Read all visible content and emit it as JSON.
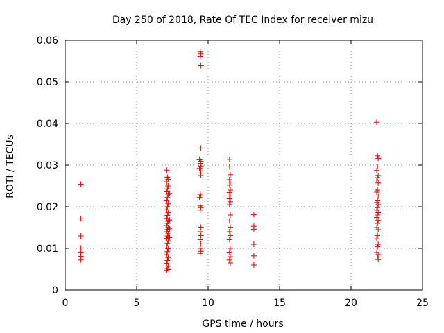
{
  "chart_data": {
    "type": "scatter",
    "title": "Day 250 of 2018, Rate Of TEC Index for receiver mizu",
    "xlabel": "GPS time / hours",
    "ylabel": "ROTI / TECUs",
    "xlim": [
      0,
      25
    ],
    "ylim": [
      0,
      0.06
    ],
    "x_ticks": [
      0,
      5,
      10,
      15,
      20,
      25
    ],
    "x_tick_labels": [
      "0",
      "5",
      "10",
      "15",
      "20",
      "25"
    ],
    "y_ticks": [
      0,
      0.01,
      0.02,
      0.03,
      0.04,
      0.05,
      0.06
    ],
    "y_tick_labels": [
      "0",
      "0.01",
      "0.02",
      "0.03",
      "0.04",
      "0.05",
      "0.06"
    ],
    "grid": true,
    "marker": "plus",
    "color": "#dd0000",
    "series": [
      {
        "points": [
          [
            1.1,
            0.0254
          ],
          [
            1.1,
            0.0171
          ],
          [
            1.1,
            0.013
          ],
          [
            1.1,
            0.0101
          ],
          [
            1.1,
            0.0091
          ],
          [
            1.1,
            0.0081
          ],
          [
            1.1,
            0.0072
          ],
          [
            7.1,
            0.0288
          ],
          [
            7.15,
            0.0271
          ],
          [
            7.2,
            0.0266
          ],
          [
            7.1,
            0.026
          ],
          [
            7.2,
            0.025
          ],
          [
            7.15,
            0.0243
          ],
          [
            7.1,
            0.0236
          ],
          [
            7.2,
            0.023
          ],
          [
            7.15,
            0.0222
          ],
          [
            7.1,
            0.0214
          ],
          [
            7.2,
            0.0207
          ],
          [
            7.15,
            0.02
          ],
          [
            7.1,
            0.0193
          ],
          [
            7.2,
            0.0186
          ],
          [
            7.15,
            0.0179
          ],
          [
            7.1,
            0.0172
          ],
          [
            7.2,
            0.0165
          ],
          [
            7.15,
            0.016
          ],
          [
            7.1,
            0.0155
          ],
          [
            7.2,
            0.015
          ],
          [
            7.15,
            0.0145
          ],
          [
            7.1,
            0.014
          ],
          [
            7.2,
            0.0135
          ],
          [
            7.15,
            0.013
          ],
          [
            7.1,
            0.0124
          ],
          [
            7.2,
            0.0118
          ],
          [
            7.15,
            0.0112
          ],
          [
            7.1,
            0.0106
          ],
          [
            7.2,
            0.0099
          ],
          [
            7.15,
            0.0092
          ],
          [
            7.1,
            0.0085
          ],
          [
            7.2,
            0.0078
          ],
          [
            7.15,
            0.0071
          ],
          [
            7.1,
            0.0064
          ],
          [
            7.2,
            0.0057
          ],
          [
            7.15,
            0.0052
          ],
          [
            7.1,
            0.0048
          ],
          [
            7.25,
            0.0049
          ],
          [
            7.3,
            0.0168
          ],
          [
            7.3,
            0.0147
          ],
          [
            7.3,
            0.0126
          ],
          [
            7.3,
            0.0232
          ],
          [
            9.45,
            0.0572
          ],
          [
            9.5,
            0.0567
          ],
          [
            9.45,
            0.0561
          ],
          [
            9.5,
            0.0539
          ],
          [
            9.5,
            0.0341
          ],
          [
            9.4,
            0.0314
          ],
          [
            9.5,
            0.0309
          ],
          [
            9.45,
            0.0304
          ],
          [
            9.5,
            0.0298
          ],
          [
            9.4,
            0.0292
          ],
          [
            9.5,
            0.0286
          ],
          [
            9.45,
            0.0281
          ],
          [
            9.5,
            0.0275
          ],
          [
            9.45,
            0.023
          ],
          [
            9.5,
            0.0226
          ],
          [
            9.4,
            0.0222
          ],
          [
            9.45,
            0.0202
          ],
          [
            9.5,
            0.0198
          ],
          [
            9.45,
            0.0192
          ],
          [
            9.5,
            0.0151
          ],
          [
            9.45,
            0.014
          ],
          [
            9.5,
            0.0131
          ],
          [
            9.45,
            0.0121
          ],
          [
            9.5,
            0.0111
          ],
          [
            9.45,
            0.01
          ],
          [
            9.5,
            0.0093
          ],
          [
            9.45,
            0.0088
          ],
          [
            11.5,
            0.0313
          ],
          [
            11.5,
            0.0296
          ],
          [
            11.55,
            0.0277
          ],
          [
            11.5,
            0.0265
          ],
          [
            11.55,
            0.0259
          ],
          [
            11.5,
            0.0252
          ],
          [
            11.55,
            0.024
          ],
          [
            11.5,
            0.0234
          ],
          [
            11.55,
            0.0226
          ],
          [
            11.5,
            0.0219
          ],
          [
            11.55,
            0.0212
          ],
          [
            11.5,
            0.0205
          ],
          [
            11.55,
            0.018
          ],
          [
            11.5,
            0.0166
          ],
          [
            11.55,
            0.0151
          ],
          [
            11.5,
            0.014
          ],
          [
            11.55,
            0.0131
          ],
          [
            11.5,
            0.0121
          ],
          [
            11.55,
            0.01
          ],
          [
            11.5,
            0.0091
          ],
          [
            11.55,
            0.008
          ],
          [
            11.5,
            0.0072
          ],
          [
            11.55,
            0.0065
          ],
          [
            13.2,
            0.0181
          ],
          [
            13.2,
            0.0153
          ],
          [
            13.2,
            0.0146
          ],
          [
            13.2,
            0.011
          ],
          [
            13.2,
            0.0082
          ],
          [
            13.2,
            0.006
          ],
          [
            21.8,
            0.0403
          ],
          [
            21.85,
            0.0322
          ],
          [
            21.9,
            0.0316
          ],
          [
            21.85,
            0.0296
          ],
          [
            21.8,
            0.0287
          ],
          [
            21.9,
            0.0275
          ],
          [
            21.85,
            0.027
          ],
          [
            21.8,
            0.0264
          ],
          [
            21.9,
            0.0257
          ],
          [
            21.85,
            0.024
          ],
          [
            21.8,
            0.0235
          ],
          [
            21.9,
            0.0226
          ],
          [
            21.85,
            0.0214
          ],
          [
            21.8,
            0.021
          ],
          [
            21.9,
            0.0205
          ],
          [
            21.85,
            0.0198
          ],
          [
            21.8,
            0.0192
          ],
          [
            21.9,
            0.0186
          ],
          [
            21.85,
            0.018
          ],
          [
            21.8,
            0.0174
          ],
          [
            21.9,
            0.0167
          ],
          [
            21.85,
            0.016
          ],
          [
            21.8,
            0.015
          ],
          [
            21.9,
            0.0145
          ],
          [
            21.85,
            0.0131
          ],
          [
            21.8,
            0.0123
          ],
          [
            21.9,
            0.011
          ],
          [
            21.85,
            0.0104
          ],
          [
            21.8,
            0.009
          ],
          [
            21.9,
            0.0085
          ],
          [
            21.85,
            0.0079
          ],
          [
            21.9,
            0.0073
          ]
        ]
      }
    ]
  }
}
